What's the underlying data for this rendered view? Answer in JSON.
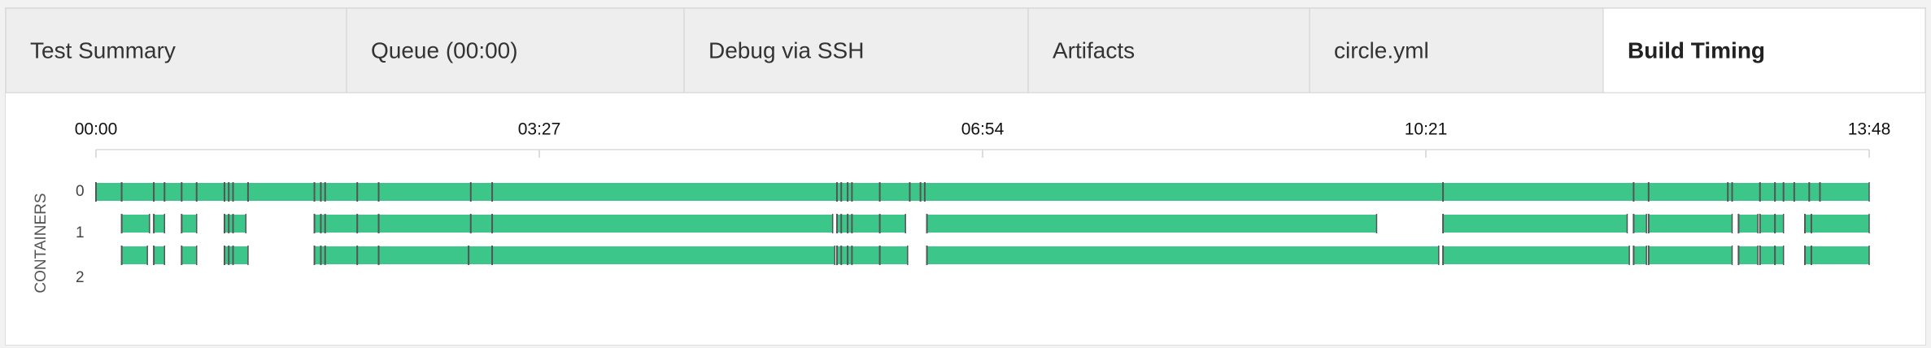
{
  "tabs": [
    "Test Summary",
    "Queue (00:00)",
    "Debug via SSH",
    "Artifacts",
    "circle.yml",
    "Build Timing"
  ],
  "active_tab": 5,
  "timeline": {
    "axis_label": "CONTAINERS",
    "xlim": [
      0,
      828
    ],
    "xticks": [
      {
        "value": 0,
        "label": "00:00"
      },
      {
        "value": 207,
        "label": "03:27"
      },
      {
        "value": 414,
        "label": "06:54"
      },
      {
        "value": 621,
        "label": "10:21"
      },
      {
        "value": 828,
        "label": "13:48"
      }
    ],
    "color": "#3cc68a",
    "containers": [
      {
        "label": "0",
        "segments": [
          [
            0,
            12
          ],
          [
            12,
            27
          ],
          [
            27,
            32
          ],
          [
            32,
            40
          ],
          [
            40,
            47
          ],
          [
            47,
            60
          ],
          [
            60,
            62
          ],
          [
            62,
            64
          ],
          [
            64,
            71
          ],
          [
            71,
            102
          ],
          [
            102,
            105
          ],
          [
            105,
            107
          ],
          [
            107,
            122
          ],
          [
            122,
            132
          ],
          [
            132,
            175
          ],
          [
            175,
            185
          ],
          [
            185,
            346
          ],
          [
            346,
            348
          ],
          [
            348,
            351
          ],
          [
            351,
            353
          ],
          [
            353,
            366
          ],
          [
            366,
            380
          ],
          [
            380,
            385
          ],
          [
            385,
            387
          ],
          [
            387,
            629
          ],
          [
            629,
            718
          ],
          [
            718,
            725
          ],
          [
            725,
            762
          ],
          [
            762,
            764
          ],
          [
            764,
            777
          ],
          [
            777,
            784
          ],
          [
            784,
            788
          ],
          [
            788,
            793
          ],
          [
            793,
            800
          ],
          [
            800,
            805
          ],
          [
            805,
            828
          ]
        ]
      },
      {
        "label": "1",
        "segments": [
          [
            12,
            25
          ],
          [
            27,
            32
          ],
          [
            40,
            47
          ],
          [
            60,
            62
          ],
          [
            62,
            64
          ],
          [
            64,
            70
          ],
          [
            102,
            105
          ],
          [
            105,
            107
          ],
          [
            107,
            122
          ],
          [
            122,
            132
          ],
          [
            132,
            175
          ],
          [
            175,
            185
          ],
          [
            185,
            344
          ],
          [
            346,
            348
          ],
          [
            348,
            351
          ],
          [
            351,
            353
          ],
          [
            353,
            366
          ],
          [
            366,
            378
          ],
          [
            388,
            598
          ],
          [
            629,
            715
          ],
          [
            718,
            724
          ],
          [
            725,
            764
          ],
          [
            767,
            776
          ],
          [
            777,
            784
          ],
          [
            784,
            788
          ],
          [
            798,
            801
          ],
          [
            801,
            828
          ]
        ]
      },
      {
        "label": "2",
        "segments": [
          [
            12,
            24
          ],
          [
            27,
            32
          ],
          [
            40,
            47
          ],
          [
            60,
            62
          ],
          [
            62,
            64
          ],
          [
            64,
            71
          ],
          [
            102,
            105
          ],
          [
            105,
            107
          ],
          [
            107,
            122
          ],
          [
            122,
            132
          ],
          [
            132,
            174
          ],
          [
            174,
            185
          ],
          [
            185,
            345
          ],
          [
            346,
            348
          ],
          [
            348,
            351
          ],
          [
            351,
            353
          ],
          [
            353,
            366
          ],
          [
            366,
            379
          ],
          [
            388,
            627
          ],
          [
            629,
            716
          ],
          [
            718,
            724
          ],
          [
            725,
            764
          ],
          [
            767,
            776
          ],
          [
            777,
            784
          ],
          [
            784,
            788
          ],
          [
            798,
            801
          ],
          [
            801,
            828
          ]
        ]
      }
    ]
  }
}
